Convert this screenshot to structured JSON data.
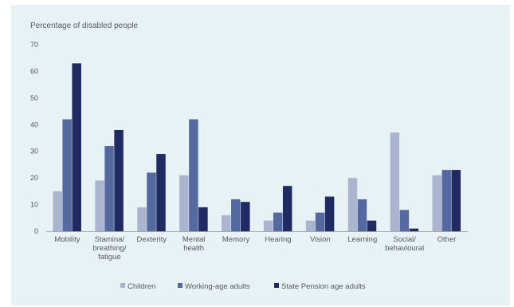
{
  "chart_data": {
    "type": "bar",
    "title": "",
    "ylabel": "Percentage of disabled people",
    "xlabel": "",
    "ylim": [
      0,
      70
    ],
    "yticks": [
      0,
      10,
      20,
      30,
      40,
      50,
      60,
      70
    ],
    "grid": false,
    "legend_position": "bottom",
    "categories": [
      [
        "Mobility"
      ],
      [
        "Stamina/",
        "breathing/",
        "fatigue"
      ],
      [
        "Dexterity"
      ],
      [
        "Mental",
        "health"
      ],
      [
        "Memory"
      ],
      [
        "Hearing"
      ],
      [
        "Vision"
      ],
      [
        "Learning"
      ],
      [
        "Social/",
        "behavioural"
      ],
      [
        "Other"
      ]
    ],
    "series": [
      {
        "name": "Children",
        "color": "#a9b4cf",
        "values": [
          15,
          19,
          9,
          21,
          6,
          4,
          4,
          20,
          37,
          21
        ]
      },
      {
        "name": "Working-age adults",
        "color": "#5469a0",
        "values": [
          42,
          32,
          22,
          42,
          12,
          7,
          7,
          12,
          8,
          23
        ]
      },
      {
        "name": "State Pension age adults",
        "color": "#202a63",
        "values": [
          63,
          38,
          29,
          9,
          11,
          17,
          13,
          4,
          1,
          23
        ]
      }
    ]
  }
}
